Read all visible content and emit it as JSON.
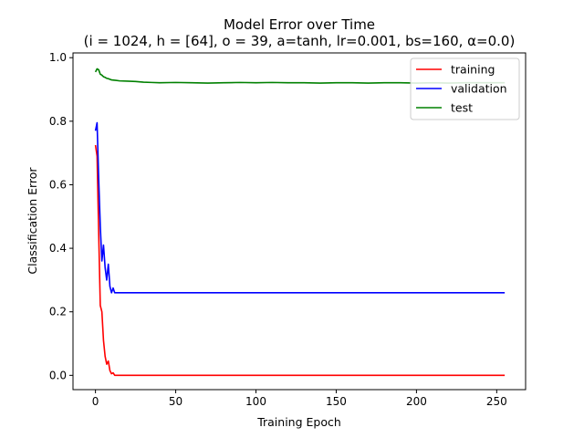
{
  "chart_data": {
    "type": "line",
    "title": "Model Error over Time",
    "subtitle": "(i = 1024, h = [64], o = 39, a=tanh, lr=0.001, bs=160, α=0.0)",
    "xlabel": "Training Epoch",
    "ylabel": "Classification Error",
    "xlim": [
      -14,
      268
    ],
    "ylim": [
      -0.045,
      1.015
    ],
    "xticks": [
      0,
      50,
      100,
      150,
      200,
      250
    ],
    "yticks": [
      0.0,
      0.2,
      0.4,
      0.6,
      0.8,
      1.0
    ],
    "xtick_labels": [
      "0",
      "50",
      "100",
      "150",
      "200",
      "250"
    ],
    "ytick_labels": [
      "0.0",
      "0.2",
      "0.4",
      "0.6",
      "0.8",
      "1.0"
    ],
    "grid": false,
    "legend_position": "top-right",
    "series": [
      {
        "name": "training",
        "color": "#ff0000",
        "x": [
          0,
          1,
          2,
          3,
          4,
          5,
          6,
          7,
          8,
          9,
          10,
          11,
          12,
          13,
          14,
          15,
          20,
          30,
          50,
          100,
          150,
          200,
          255
        ],
        "y": [
          0.725,
          0.69,
          0.45,
          0.22,
          0.2,
          0.11,
          0.06,
          0.035,
          0.045,
          0.015,
          0.005,
          0.008,
          0.0,
          0.0,
          0.0,
          0.0,
          0.0,
          0.0,
          0.0,
          0.0,
          0.0,
          0.0,
          0.0
        ]
      },
      {
        "name": "validation",
        "color": "#0000ff",
        "x": [
          0,
          1,
          2,
          3,
          4,
          5,
          6,
          7,
          8,
          9,
          10,
          11,
          12,
          13,
          14,
          20,
          50,
          100,
          150,
          200,
          255
        ],
        "y": [
          0.77,
          0.795,
          0.62,
          0.47,
          0.36,
          0.41,
          0.34,
          0.3,
          0.35,
          0.28,
          0.26,
          0.275,
          0.26,
          0.26,
          0.26,
          0.26,
          0.26,
          0.26,
          0.26,
          0.26,
          0.26
        ]
      },
      {
        "name": "test",
        "color": "#008000",
        "x": [
          0,
          1,
          2,
          3,
          4,
          5,
          6,
          7,
          8,
          9,
          10,
          12,
          15,
          20,
          25,
          30,
          35,
          40,
          50,
          60,
          70,
          80,
          90,
          100,
          110,
          120,
          130,
          140,
          150,
          160,
          170,
          180,
          190,
          200,
          210,
          220,
          230,
          240,
          250,
          255
        ],
        "y": [
          0.955,
          0.965,
          0.962,
          0.948,
          0.945,
          0.94,
          0.938,
          0.935,
          0.934,
          0.932,
          0.93,
          0.929,
          0.927,
          0.926,
          0.925,
          0.923,
          0.922,
          0.921,
          0.922,
          0.921,
          0.92,
          0.921,
          0.922,
          0.921,
          0.922,
          0.921,
          0.921,
          0.92,
          0.921,
          0.921,
          0.92,
          0.921,
          0.921,
          0.92,
          0.921,
          0.92,
          0.921,
          0.921,
          0.921,
          0.921
        ]
      }
    ]
  }
}
